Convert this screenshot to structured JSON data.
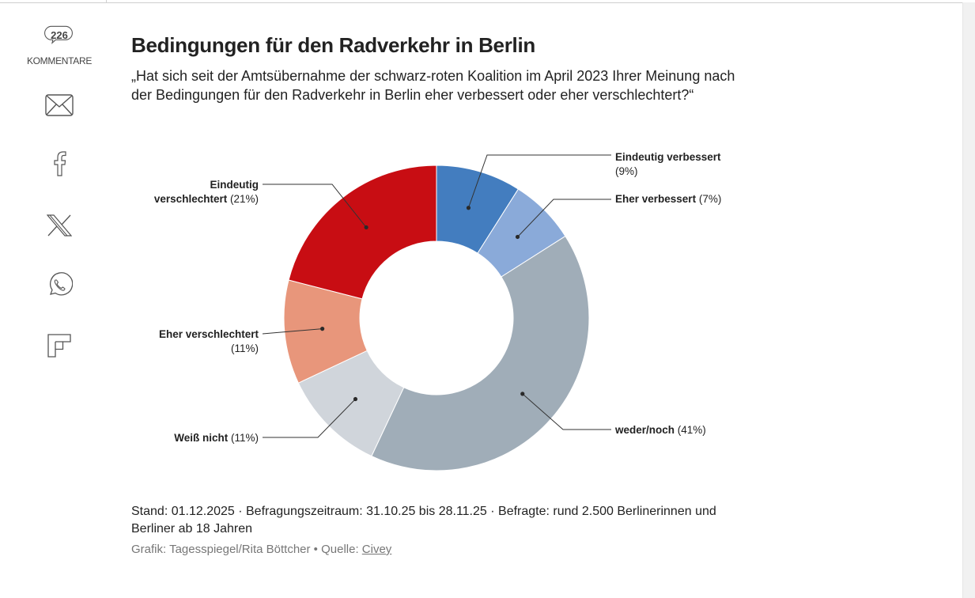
{
  "share_rail": {
    "comments_count": "226",
    "comments_label": "KOMMENTARE",
    "icons": [
      "mail-icon",
      "facebook-icon",
      "x-icon",
      "whatsapp-icon",
      "flipboard-icon"
    ]
  },
  "header": {
    "title": "Bedingungen für den Radverkehr in Berlin",
    "question": "„Hat sich seit der Amtsübernahme der schwarz-roten Koalition im April 2023 Ihrer Meinung nach der Bedingungen für den Radverkehr in Berlin eher verbessert oder eher verschlechtert?“"
  },
  "chart_data": {
    "type": "pie",
    "variant": "donut",
    "title": "Bedingungen für den Radverkehr in Berlin",
    "unit": "%",
    "start": "12 o'clock, clockwise",
    "slices": [
      {
        "label": "Eindeutig verbessert",
        "value": 9,
        "value_label": "(9%)",
        "color": "#437dbf"
      },
      {
        "label": "Eher verbessert",
        "value": 7,
        "value_label": "(7%)",
        "color": "#8aaad9"
      },
      {
        "label": "weder/noch",
        "value": 41,
        "value_label": "(41%)",
        "color": "#a0adb8"
      },
      {
        "label": "Weiß nicht",
        "value": 11,
        "value_label": "(11%)",
        "color": "#d0d5db"
      },
      {
        "label": "Eher verschlechtert",
        "value": 11,
        "value_label": "(11%)",
        "color": "#e8967b"
      },
      {
        "label": "Eindeutig verschlechtert",
        "value": 21,
        "value_label": "(21%)",
        "color": "#c80d13"
      }
    ],
    "label_parts": {
      "eindeutig_verbessert": "Eindeutig verbessert",
      "eher_verbessert": "Eher verbessert",
      "weder_noch": "weder/noch",
      "weiss_nicht": "Weiß nicht",
      "eher_verschlechtert": "Eher verschlechtert",
      "eindeutig_verschlechtert_line1": "Eindeutig",
      "eindeutig_verschlechtert_line2": "verschlechtert"
    }
  },
  "footer": {
    "notes": "Stand: 01.12.2025 · Befragungszeitraum: 31.10.25 bis 28.11.25 · Befragte: rund 2.500 Berlinerinnen und Berliner ab 18 Jahren",
    "credit_prefix": "Grafik: Tagesspiegel/Rita Böttcher • Quelle: ",
    "source_link": "Civey"
  }
}
